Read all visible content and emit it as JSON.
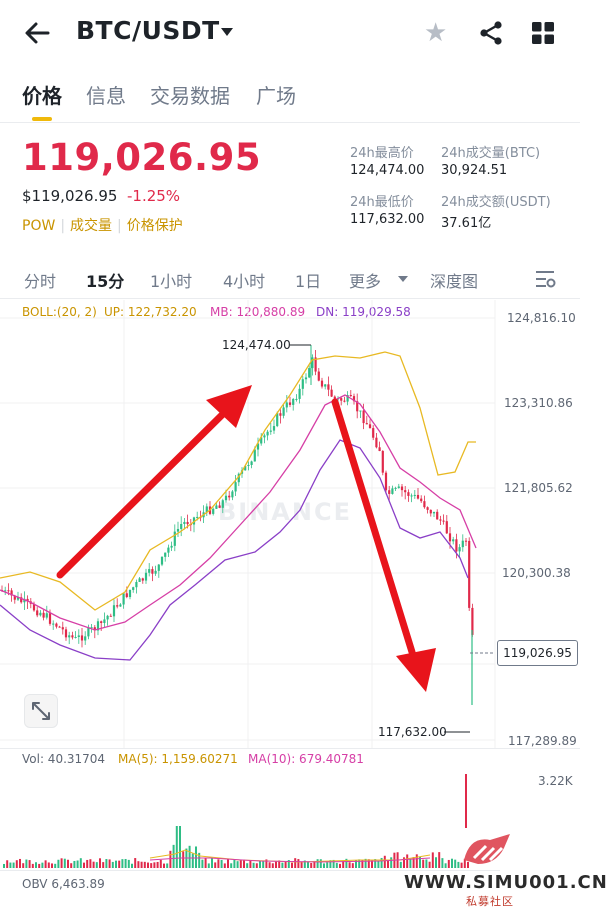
{
  "header": {
    "pair": "BTC/USDT"
  },
  "tabs": [
    "价格",
    "信息",
    "交易数据",
    "广场"
  ],
  "ticker": {
    "price": "119,026.95",
    "usd_price": "$119,026.95",
    "change": "-1.25%",
    "badges": [
      "POW",
      "成交量",
      "价格保护"
    ]
  },
  "stats": {
    "high_label": "24h最高价",
    "high_value": "124,474.00",
    "vol_btc_label": "24h成交量(BTC)",
    "vol_btc_value": "30,924.51",
    "low_label": "24h最低价",
    "low_value": "117,632.00",
    "vol_usdt_label": "24h成交额(USDT)",
    "vol_usdt_value": "37.61亿"
  },
  "timeframes": {
    "items": [
      "分时",
      "15分",
      "1小时",
      "4小时",
      "1日",
      "更多",
      "深度图"
    ],
    "active": "15分"
  },
  "indicators": {
    "boll": "BOLL:(20, 2)",
    "up": "UP: 122,732.20",
    "mb": "MB: 120,880.89",
    "dn": "DN: 119,029.58",
    "vol": "Vol: 40.31704",
    "ma5": "MA(5): 1,159.60271",
    "ma10": "MA(10): 679.40781",
    "obv": "OBV 6,463.89"
  },
  "chart": {
    "price_axis": [
      "124,816.10",
      "123,310.86",
      "121,805.62",
      "120,300.38",
      "117,289.89"
    ],
    "current_price_tag": "119,026.95",
    "high_annotation": "124,474.00",
    "low_annotation": "117,632.00",
    "volume_axis": "3.22K",
    "watermark": "BINANCE"
  },
  "colors": {
    "up": "#2ebd85",
    "down": "#e0294a",
    "accent": "#f0b90b",
    "boll_up": "#e8b923",
    "boll_mb": "#d63fa6",
    "boll_dn": "#8a3fc7",
    "arrow": "#e8141b"
  },
  "chart_data": {
    "type": "candlestick",
    "timeframe": "15分",
    "ylim": [
      117289.89,
      124816.1
    ],
    "high": 124474.0,
    "low": 117632.0,
    "last": 119026.95
  },
  "brand": {
    "site": "WWW.SIMU001.CN",
    "site_sub": "私募社区"
  }
}
